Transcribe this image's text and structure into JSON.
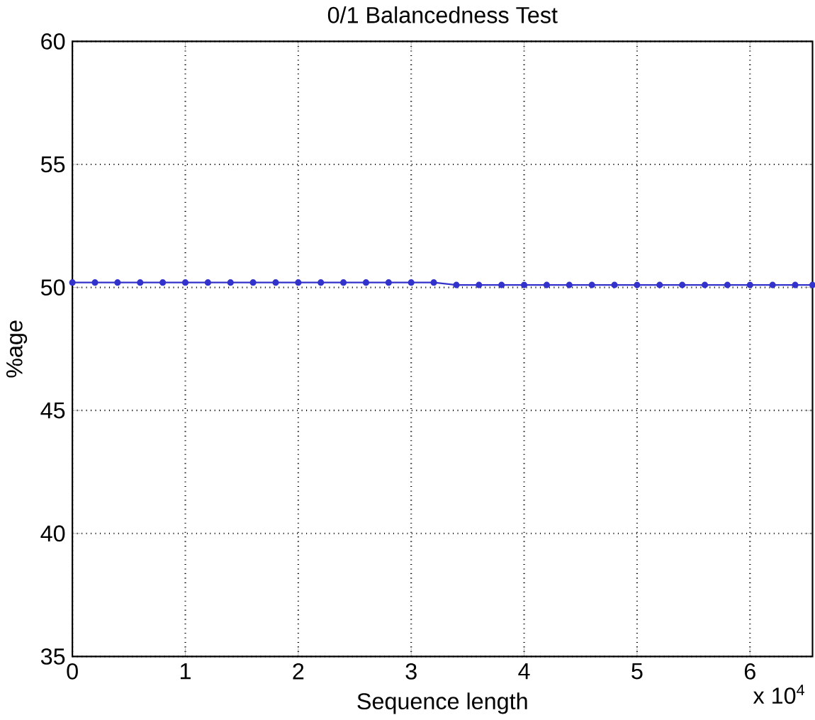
{
  "chart_data": {
    "type": "line",
    "title": "0/1 Balancedness Test",
    "xlabel": "Sequence length",
    "ylabel": "%age",
    "x": [
      0,
      0.2,
      0.4,
      0.6,
      0.8,
      1.0,
      1.2,
      1.4,
      1.6,
      1.8,
      2.0,
      2.2,
      2.4,
      2.6,
      2.8,
      3.0,
      3.2,
      3.4,
      3.6,
      3.8,
      4.0,
      4.2,
      4.4,
      4.6,
      4.8,
      5.0,
      5.2,
      5.4,
      5.6,
      5.8,
      6.0,
      6.2,
      6.4,
      6.5536
    ],
    "series": [
      {
        "color": "#3333cc",
        "values": [
          50.2,
          50.2,
          50.2,
          50.2,
          50.2,
          50.2,
          50.2,
          50.2,
          50.2,
          50.2,
          50.2,
          50.2,
          50.2,
          50.2,
          50.2,
          50.2,
          50.2,
          50.1,
          50.1,
          50.1,
          50.1,
          50.1,
          50.1,
          50.1,
          50.1,
          50.1,
          50.1,
          50.1,
          50.1,
          50.1,
          50.1,
          50.1,
          50.1,
          50.1
        ]
      }
    ],
    "xlim": [
      0,
      6.5536
    ],
    "ylim": [
      35,
      60
    ],
    "xticks": [
      0,
      1,
      2,
      3,
      4,
      5,
      6
    ],
    "yticks": [
      35,
      40,
      45,
      50,
      55,
      60
    ],
    "annotations": [
      "x 10$^{4}$"
    ],
    "grid": true,
    "marker": "circle",
    "line_style": "solid"
  }
}
